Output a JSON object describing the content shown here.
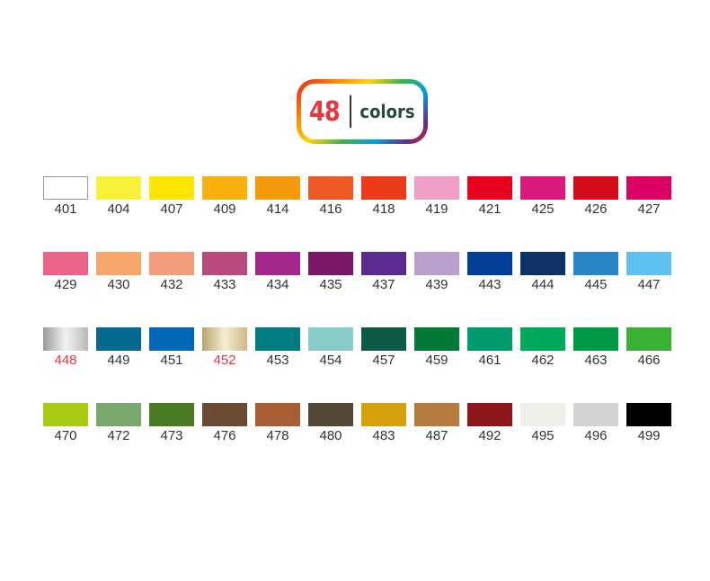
{
  "title": {
    "number": "48",
    "word": "colors"
  },
  "rows": [
    [
      {
        "code": "401",
        "color": "#ffffff",
        "border": true
      },
      {
        "code": "404",
        "color": "#f7f13a"
      },
      {
        "code": "407",
        "color": "#ffe600"
      },
      {
        "code": "409",
        "color": "#f9b10d"
      },
      {
        "code": "414",
        "color": "#f39a0b"
      },
      {
        "code": "416",
        "color": "#ee5a24"
      },
      {
        "code": "418",
        "color": "#ea3a18"
      },
      {
        "code": "419",
        "color": "#ef9ec4"
      },
      {
        "code": "421",
        "color": "#e8001f"
      },
      {
        "code": "425",
        "color": "#db1a7d"
      },
      {
        "code": "426",
        "color": "#d40b1b"
      },
      {
        "code": "427",
        "color": "#dc0062"
      }
    ],
    [
      {
        "code": "429",
        "color": "#ea6389"
      },
      {
        "code": "430",
        "color": "#f6a56b"
      },
      {
        "code": "432",
        "color": "#f39e7c"
      },
      {
        "code": "433",
        "color": "#b94a7c"
      },
      {
        "code": "434",
        "color": "#a2288c"
      },
      {
        "code": "435",
        "color": "#7b1966"
      },
      {
        "code": "437",
        "color": "#5a2c8f"
      },
      {
        "code": "439",
        "color": "#bb9fcc"
      },
      {
        "code": "443",
        "color": "#003f95"
      },
      {
        "code": "444",
        "color": "#0d3266"
      },
      {
        "code": "445",
        "color": "#2b86c7"
      },
      {
        "code": "447",
        "color": "#5ec1ef"
      }
    ],
    [
      {
        "code": "448",
        "color": "#c0c0c0",
        "gradient": "linear-gradient(90deg,#9a9a9a,#f2f2f2,#b8b8b8)",
        "special": true
      },
      {
        "code": "449",
        "color": "#06698f"
      },
      {
        "code": "451",
        "color": "#0068b6"
      },
      {
        "code": "452",
        "color": "#d9c9a0",
        "gradient": "linear-gradient(90deg,#b8a46e,#f6eed2,#cdb98a)",
        "special": true
      },
      {
        "code": "453",
        "color": "#007c80"
      },
      {
        "code": "454",
        "color": "#88ccc9"
      },
      {
        "code": "457",
        "color": "#0d5a46"
      },
      {
        "code": "459",
        "color": "#007a35"
      },
      {
        "code": "461",
        "color": "#009b6c"
      },
      {
        "code": "462",
        "color": "#00a95a"
      },
      {
        "code": "463",
        "color": "#009a47"
      },
      {
        "code": "466",
        "color": "#3ab035"
      }
    ],
    [
      {
        "code": "470",
        "color": "#a6cb12"
      },
      {
        "code": "472",
        "color": "#79a86a"
      },
      {
        "code": "473",
        "color": "#4b7b25"
      },
      {
        "code": "476",
        "color": "#6a4a32"
      },
      {
        "code": "478",
        "color": "#a95f35"
      },
      {
        "code": "480",
        "color": "#524834"
      },
      {
        "code": "483",
        "color": "#d6a00a"
      },
      {
        "code": "487",
        "color": "#b67b3e"
      },
      {
        "code": "492",
        "color": "#8b1519"
      },
      {
        "code": "495",
        "color": "#efefe8"
      },
      {
        "code": "496",
        "color": "#d2d3d5"
      },
      {
        "code": "499",
        "color": "#000000"
      }
    ]
  ]
}
